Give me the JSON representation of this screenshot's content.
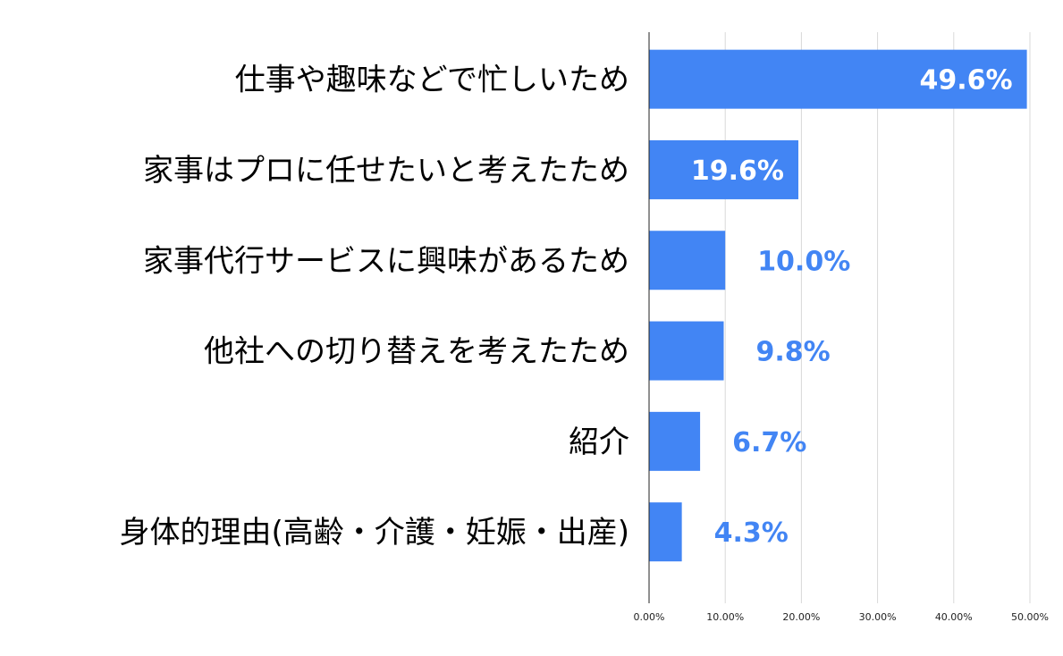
{
  "chart_data": {
    "type": "bar",
    "orientation": "horizontal",
    "categories": [
      "仕事や趣味などで忙しいため",
      "家事はプロに任せたいと考えたため",
      "家事代行サービスに興味があるため",
      "他社への切り替えを考えたため",
      "紹介",
      "身体的理由(高齢・介護・妊娠・出産)"
    ],
    "values": [
      49.6,
      19.6,
      10.0,
      9.8,
      6.7,
      4.3
    ],
    "value_labels": [
      "49.6%",
      "19.6%",
      "10.0%",
      "9.8%",
      "6.7%",
      "4.3%"
    ],
    "xlim": [
      0,
      50
    ],
    "xticks": [
      0,
      10,
      20,
      30,
      40,
      50
    ],
    "xtick_labels": [
      "0.00%",
      "10.00%",
      "20.00%",
      "30.00%",
      "40.00%",
      "50.00%"
    ],
    "bar_color": "#4285f4",
    "grid": true,
    "legend": false
  }
}
